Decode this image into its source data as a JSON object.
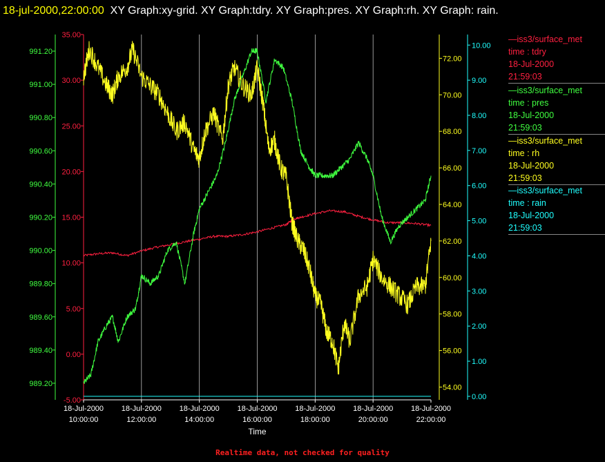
{
  "title": {
    "timestamp": "18-jul-2000,22:00:00",
    "text": "XY Graph:xy-grid.  XY Graph:tdry.  XY Graph:pres.  XY Graph:rh.  XY Graph: rain."
  },
  "footer": "Realtime data, not checked for quality",
  "colors": {
    "tdry": "#ff2040",
    "pres": "#40ff40",
    "rh": "#ffff20",
    "rain": "#20ffff",
    "grid": "#ffffff"
  },
  "legend": [
    {
      "source": "—iss3/surface_met",
      "variable": "time : tdry",
      "date": "18-Jul-2000",
      "time": "21:59:03",
      "color": "#ff2040"
    },
    {
      "source": "—iss3/surface_met",
      "variable": "time : pres",
      "date": "18-Jul-2000",
      "time": "21:59:03",
      "color": "#40ff40"
    },
    {
      "source": "—iss3/surface_met",
      "variable": "time : rh",
      "date": "18-Jul-2000",
      "time": "21:59:03",
      "color": "#ffff20"
    },
    {
      "source": "—iss3/surface_met",
      "variable": "time : rain",
      "date": "18-Jul-2000",
      "time": "21:59:03",
      "color": "#20ffff"
    }
  ],
  "chart_data": {
    "type": "line",
    "xlabel": "Time",
    "x_ticks": [
      {
        "date": "18-Jul-2000",
        "time": "10:00:00",
        "hour": 10
      },
      {
        "date": "18-Jul-2000",
        "time": "12:00:00",
        "hour": 12
      },
      {
        "date": "18-Jul-2000",
        "time": "14:00:00",
        "hour": 14
      },
      {
        "date": "18-Jul-2000",
        "time": "16:00:00",
        "hour": 16
      },
      {
        "date": "18-Jul-2000",
        "time": "18:00:00",
        "hour": 18
      },
      {
        "date": "18-Jul-2000",
        "time": "20:00:00",
        "hour": 20
      },
      {
        "date": "18-Jul-2000",
        "time": "22:00:00",
        "hour": 22
      }
    ],
    "xlim_hours": [
      10,
      22
    ],
    "grid": "vertical",
    "axes": {
      "tdry": {
        "ylim": [
          -5,
          35
        ],
        "ticks": [
          "-5.00",
          "0.00",
          "5.00",
          "10.00",
          "15.00",
          "20.00",
          "25.00",
          "30.00",
          "35.00"
        ]
      },
      "pres": {
        "ylim": [
          989.1,
          991.3
        ],
        "ticks": [
          "989.20",
          "989.40",
          "989.60",
          "989.80",
          "990.00",
          "990.20",
          "990.40",
          "990.60",
          "990.80",
          "991.00",
          "991.20"
        ]
      },
      "rh": {
        "ylim": [
          53.3,
          73.3
        ],
        "ticks": [
          "54.00",
          "56.00",
          "58.00",
          "60.00",
          "62.00",
          "64.00",
          "66.00",
          "68.00",
          "70.00",
          "72.00"
        ]
      },
      "rain": {
        "ylim": [
          -0.1,
          10.3
        ],
        "ticks": [
          "0.00",
          "1.00",
          "2.00",
          "3.00",
          "4.00",
          "5.00",
          "6.00",
          "7.00",
          "8.00",
          "9.00",
          "10.00"
        ]
      }
    },
    "series": [
      {
        "key": "tdry",
        "axis": "tdry",
        "hours": [
          10,
          10.5,
          11,
          11.5,
          12,
          12.5,
          13,
          13.5,
          14,
          14.5,
          15,
          15.5,
          16,
          16.5,
          17,
          17.25,
          17.5,
          18,
          18.5,
          19,
          19.5,
          20,
          20.5,
          21,
          21.5,
          22
        ],
        "values": [
          10.8,
          11.0,
          11.1,
          10.8,
          11.3,
          11.7,
          12.0,
          12.3,
          12.6,
          12.9,
          12.9,
          13.1,
          13.4,
          13.8,
          14.2,
          14.8,
          15.0,
          15.4,
          15.7,
          15.6,
          15.1,
          14.7,
          14.4,
          14.4,
          14.3,
          14.1
        ]
      },
      {
        "key": "pres",
        "axis": "pres",
        "hours": [
          10,
          10.25,
          10.5,
          10.8,
          11,
          11.2,
          11.5,
          11.8,
          12,
          12.3,
          12.6,
          12.9,
          13.2,
          13.5,
          13.8,
          14,
          14.3,
          14.6,
          14.9,
          15.2,
          15.5,
          15.8,
          16,
          16.3,
          16.6,
          16.9,
          17.2,
          17.5,
          17.8,
          18,
          18.3,
          18.6,
          18.9,
          19.2,
          19.5,
          19.8,
          20,
          20.3,
          20.6,
          20.9,
          21.2,
          21.5,
          21.8,
          22
        ],
        "values": [
          989.2,
          989.25,
          989.45,
          989.55,
          989.6,
          989.45,
          989.6,
          989.65,
          989.85,
          989.8,
          989.85,
          990.0,
          990.05,
          989.8,
          990.1,
          990.25,
          990.35,
          990.45,
          990.65,
          990.9,
          991.05,
          991.2,
          991.2,
          990.9,
          991.15,
          991.1,
          990.9,
          990.6,
          990.5,
          990.45,
          990.45,
          990.45,
          990.5,
          990.55,
          990.65,
          990.55,
          990.45,
          990.2,
          990.05,
          990.15,
          990.2,
          990.25,
          990.3,
          990.45
        ]
      },
      {
        "key": "rh",
        "axis": "rh",
        "hours": [
          10,
          10.2,
          10.5,
          10.8,
          11,
          11.2,
          11.5,
          11.7,
          12,
          12.3,
          12.6,
          12.9,
          13.2,
          13.5,
          13.8,
          14,
          14.2,
          14.5,
          14.8,
          15,
          15.2,
          15.5,
          15.8,
          16,
          16.2,
          16.4,
          16.6,
          16.8,
          17,
          17.2,
          17.4,
          17.6,
          17.8,
          18,
          18.2,
          18.4,
          18.6,
          18.8,
          19,
          19.2,
          19.5,
          19.8,
          20,
          20.3,
          20.6,
          20.9,
          21.2,
          21.5,
          21.8,
          22
        ],
        "values": [
          71.0,
          72.5,
          71.5,
          70.5,
          70.0,
          71.0,
          71.5,
          72.5,
          71.0,
          70.5,
          70.0,
          69.0,
          68.0,
          68.5,
          67.0,
          66.5,
          68.0,
          69.0,
          67.5,
          70.5,
          71.5,
          70.5,
          70.0,
          71.5,
          69.5,
          67.0,
          67.5,
          66.0,
          65.5,
          63.0,
          62.0,
          61.5,
          60.5,
          59.0,
          58.5,
          57.0,
          56.5,
          55.0,
          57.5,
          56.5,
          59.0,
          59.5,
          61.0,
          60.0,
          59.5,
          59.0,
          58.5,
          59.5,
          59.5,
          62.0
        ]
      },
      {
        "key": "rain",
        "axis": "rain",
        "hours": [
          10,
          22
        ],
        "values": [
          0.0,
          0.0
        ]
      }
    ]
  }
}
